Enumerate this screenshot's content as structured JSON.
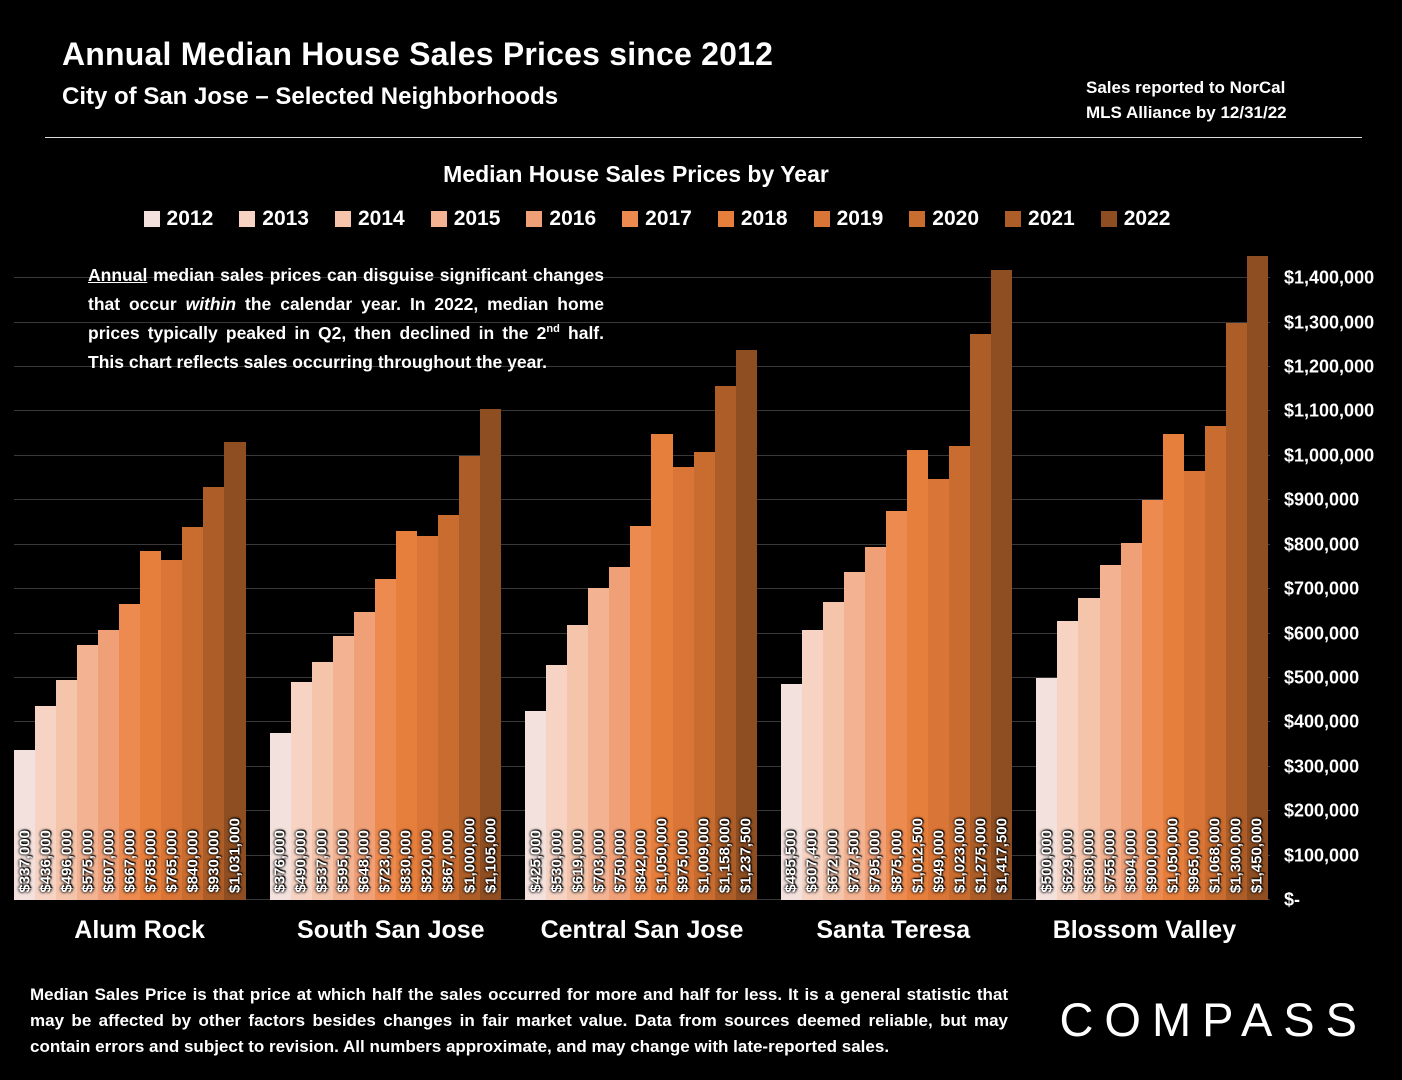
{
  "header": {
    "title": "Annual Median House Sales Prices since 2012",
    "subtitle": "City of San Jose – Selected Neighborhoods",
    "note_line1": "Sales reported to NorCal",
    "note_line2": "MLS Alliance by 12/31/22"
  },
  "annotation": {
    "underlined": "Annual",
    "text1": " median sales prices can disguise significant changes that occur ",
    "italic1": "within",
    "text2": " the calendar year. In 2022, median home prices typically peaked in Q2, then declined in the 2",
    "sup": "nd",
    "text3": " half. This chart reflects sales occurring throughout the year."
  },
  "footnote": "Median Sales Price is that price at which half the sales occurred for more and half for less. It is a general statistic that may be affected by other factors besides changes in fair market value. Data from sources deemed reliable, but may contain errors and subject to revision.  All numbers approximate, and may change with late-reported sales.",
  "logo": "COMPASS",
  "chart_data": {
    "type": "bar",
    "title": "Median House Sales Prices by Year",
    "ylabel": "",
    "xlabel": "",
    "ylim": [
      0,
      1450000
    ],
    "grid": true,
    "legend_position": "top",
    "years": [
      "2012",
      "2013",
      "2014",
      "2015",
      "2016",
      "2017",
      "2018",
      "2019",
      "2020",
      "2021",
      "2022"
    ],
    "year_colors": [
      "#f3e1dd",
      "#f6d3c3",
      "#f4c4ab",
      "#f3b392",
      "#f0a077",
      "#ec8a4f",
      "#e67e3c",
      "#d97536",
      "#c96c2f",
      "#ad5e28",
      "#8f4e21"
    ],
    "groups": [
      {
        "name": "Alum Rock",
        "values": [
          337000,
          436000,
          496000,
          575000,
          607000,
          667000,
          785000,
          765000,
          840000,
          930000,
          1031000
        ],
        "labels": [
          "$337,000",
          "$436,000",
          "$496,000",
          "$575,000",
          "$607,000",
          "$667,000",
          "$785,000",
          "$765,000",
          "$840,000",
          "$930,000",
          "$1,031,000"
        ]
      },
      {
        "name": "South San Jose",
        "values": [
          376000,
          490000,
          537000,
          595000,
          648000,
          723000,
          830000,
          820000,
          867000,
          1000000,
          1105000
        ],
        "labels": [
          "$376,000",
          "$490,000",
          "$537,000",
          "$595,000",
          "$648,000",
          "$723,000",
          "$830,000",
          "$820,000",
          "$867,000",
          "$1,000,000",
          "$1,105,000"
        ]
      },
      {
        "name": "Central San Jose",
        "values": [
          425000,
          530000,
          619000,
          703000,
          750000,
          842000,
          1050000,
          975000,
          1009000,
          1158000,
          1237500
        ],
        "labels": [
          "$425,000",
          "$530,000",
          "$619,000",
          "$703,000",
          "$750,000",
          "$842,000",
          "$1,050,000",
          "$975,000",
          "$1,009,000",
          "$1,158,000",
          "$1,237,500"
        ]
      },
      {
        "name": "Santa Teresa",
        "values": [
          485500,
          607400,
          672000,
          737500,
          795000,
          875000,
          1012500,
          949000,
          1023000,
          1275000,
          1417500
        ],
        "labels": [
          "$485,500",
          "$607,400",
          "$672,000",
          "$737,500",
          "$795,000",
          "$875,000",
          "$1,012,500",
          "$949,000",
          "$1,023,000",
          "$1,275,000",
          "$1,417,500"
        ]
      },
      {
        "name": "Blossom Valley",
        "values": [
          500000,
          629000,
          680000,
          755000,
          804000,
          900000,
          1050000,
          965000,
          1068000,
          1300000,
          1450000
        ],
        "labels": [
          "$500,000",
          "$629,000",
          "$680,000",
          "$755,000",
          "$804,000",
          "$900,000",
          "$1,050,000",
          "$965,000",
          "$1,068,000",
          "$1,300,000",
          "$1,450,000"
        ]
      }
    ],
    "y_ticks": [
      {
        "value": 1400000,
        "label": "$1,400,000"
      },
      {
        "value": 1300000,
        "label": "$1,300,000"
      },
      {
        "value": 1200000,
        "label": "$1,200,000"
      },
      {
        "value": 1100000,
        "label": "$1,100,000"
      },
      {
        "value": 1000000,
        "label": "$1,000,000"
      },
      {
        "value": 900000,
        "label": "$900,000"
      },
      {
        "value": 800000,
        "label": "$800,000"
      },
      {
        "value": 700000,
        "label": "$700,000"
      },
      {
        "value": 600000,
        "label": "$600,000"
      },
      {
        "value": 500000,
        "label": "$500,000"
      },
      {
        "value": 400000,
        "label": "$400,000"
      },
      {
        "value": 300000,
        "label": "$300,000"
      },
      {
        "value": 200000,
        "label": "$200,000"
      },
      {
        "value": 100000,
        "label": "$100,000"
      },
      {
        "value": 0,
        "label": "$-"
      }
    ]
  }
}
